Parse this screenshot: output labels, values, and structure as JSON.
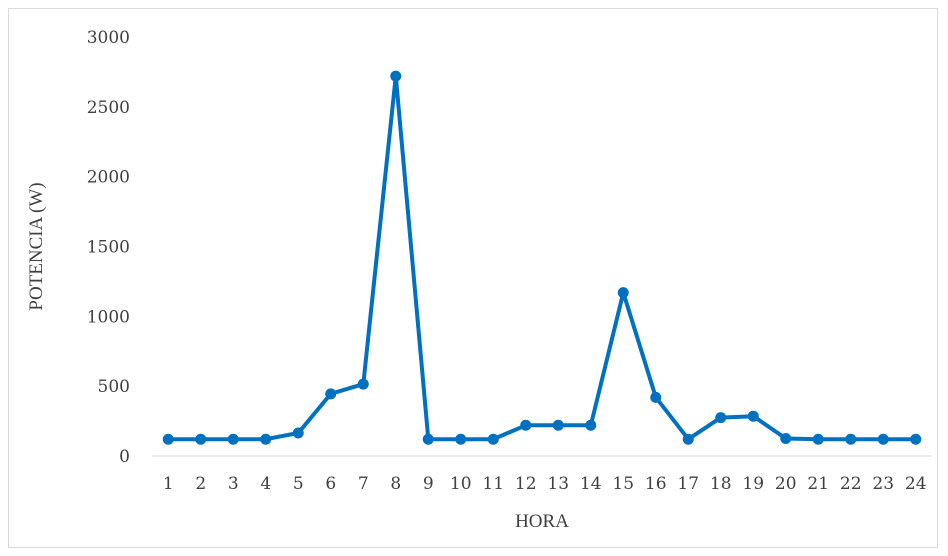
{
  "chart_data": {
    "type": "line",
    "x": [
      1,
      2,
      3,
      4,
      5,
      6,
      7,
      8,
      9,
      10,
      11,
      12,
      13,
      14,
      15,
      16,
      17,
      18,
      19,
      20,
      21,
      22,
      23,
      24
    ],
    "series": [
      {
        "values": [
          120,
          120,
          120,
          120,
          165,
          445,
          515,
          2720,
          120,
          120,
          120,
          220,
          220,
          220,
          1170,
          420,
          120,
          275,
          285,
          125,
          120,
          120,
          120,
          120
        ],
        "color": "#0070c0"
      }
    ],
    "xlabel": "HORA",
    "ylabel": "POTENCIA (W)",
    "ylim": [
      0,
      3000
    ],
    "yticks": [
      "0",
      "500",
      "1000",
      "1500",
      "2000",
      "2500",
      "3000"
    ],
    "xticks": [
      "1",
      "2",
      "3",
      "4",
      "5",
      "6",
      "7",
      "8",
      "9",
      "10",
      "11",
      "12",
      "13",
      "14",
      "15",
      "16",
      "17",
      "18",
      "19",
      "20",
      "21",
      "22",
      "23",
      "24"
    ],
    "grid": false,
    "legend": "none"
  }
}
